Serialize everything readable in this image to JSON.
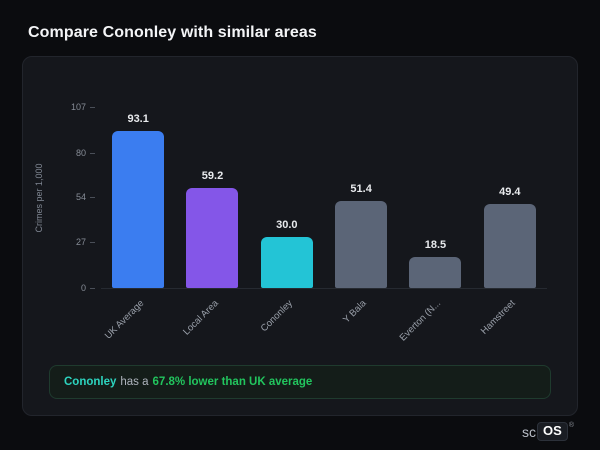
{
  "page": {
    "title": "Compare Cononley with similar areas"
  },
  "chart_data": {
    "type": "bar",
    "categories": [
      "UK Average",
      "Local Area",
      "Cononley",
      "Y Bala",
      "Everton (N...",
      "Hamstreet"
    ],
    "values": [
      93.1,
      59.2,
      30.0,
      51.4,
      18.5,
      49.4
    ],
    "value_labels": [
      "93.1",
      "59.2",
      "30.0",
      "51.4",
      "18.5",
      "49.4"
    ],
    "colors": [
      "#3b7df0",
      "#8456e8",
      "#23c4d6",
      "#5b6577",
      "#5b6577",
      "#5b6577"
    ],
    "title": "",
    "xlabel": "",
    "ylabel": "Crimes per 1,000",
    "yticks": [
      107,
      80,
      54,
      27,
      0
    ],
    "ylim": [
      0,
      107
    ],
    "grid": false,
    "legend_position": "none"
  },
  "callout": {
    "area": "Cononley",
    "middle": "has a",
    "highlight": "67.8% lower than UK average"
  },
  "logo": {
    "prefix": "sc",
    "suffix": "OS",
    "mark": "®"
  }
}
